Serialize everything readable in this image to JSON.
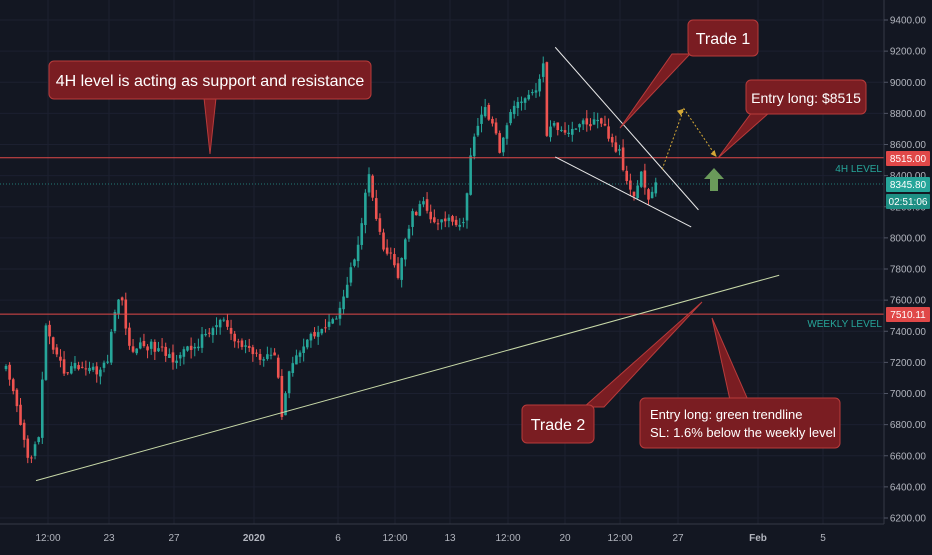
{
  "chart_data": {
    "type": "candlestick",
    "instrument_note": "BTC/USD 4H chart annotated with support/resistance levels and two trade ideas",
    "price_axis": {
      "ticks": [
        "9400.00",
        "9200.00",
        "9000.00",
        "8800.00",
        "8600.00",
        "8400.00",
        "8200.00",
        "8000.00",
        "7800.00",
        "7600.00",
        "7400.00",
        "7200.00",
        "7000.00",
        "6800.00",
        "6600.00",
        "6400.00",
        "6200.00"
      ],
      "range": [
        6150,
        9480
      ]
    },
    "time_axis": {
      "ticks": [
        "12:00",
        "23",
        "27",
        "2020",
        "6",
        "12:00",
        "13",
        "12:00",
        "20",
        "12:00",
        "27",
        "Feb",
        "5"
      ],
      "bold_ticks": [
        "2020",
        "Feb"
      ]
    },
    "levels": [
      {
        "id": "4h",
        "price": 8515,
        "label": "4H LEVEL",
        "tag": "8515.00",
        "color": "#e04848",
        "label_color": "#26a69a"
      },
      {
        "id": "weekly",
        "price": 7510.11,
        "label": "WEEKLY LEVEL",
        "tag": "7510.11",
        "color": "#e04848",
        "label_color": "#26a69a"
      }
    ],
    "current_price": {
      "tag": "8345.80",
      "countdown": "02:51:06",
      "price": 8345.8,
      "color": "#26a69a"
    },
    "trendline": {
      "from": {
        "bar": 0,
        "price": 6440
      },
      "to": {
        "bar": 213,
        "price": 7760
      },
      "color": "#c8d9a8"
    },
    "wedge": {
      "upper": {
        "from": {
          "bar": 148,
          "price": 9225
        },
        "to": {
          "bar": 188,
          "price": 8180
        }
      },
      "lower": {
        "from": {
          "bar": 148,
          "price": 8520
        },
        "to": {
          "bar": 186,
          "price": 8070
        }
      },
      "color": "#e8e8e8"
    },
    "projection": {
      "points": [
        {
          "bar": 178,
          "price": 8440
        },
        {
          "bar": 184,
          "price": 8830
        },
        {
          "bar": 193,
          "price": 8520
        }
      ],
      "color": "#d4a836"
    },
    "green_arrow_color": "#6a9a5a",
    "candle_colors": {
      "up": "#26a69a",
      "down": "#ef5350"
    },
    "anchors": [
      {
        "bar": 0,
        "price": 7150
      },
      {
        "bar": 3,
        "price": 6900
      },
      {
        "bar": 6,
        "price": 6580
      },
      {
        "bar": 9,
        "price": 6700
      },
      {
        "bar": 11,
        "price": 7450
      },
      {
        "bar": 13,
        "price": 7250
      },
      {
        "bar": 16,
        "price": 7150
      },
      {
        "bar": 20,
        "price": 7180
      },
      {
        "bar": 26,
        "price": 7150
      },
      {
        "bar": 28,
        "price": 7210
      },
      {
        "bar": 30,
        "price": 7550
      },
      {
        "bar": 32,
        "price": 7600
      },
      {
        "bar": 34,
        "price": 7280
      },
      {
        "bar": 38,
        "price": 7320
      },
      {
        "bar": 42,
        "price": 7280
      },
      {
        "bar": 46,
        "price": 7230
      },
      {
        "bar": 52,
        "price": 7300
      },
      {
        "bar": 56,
        "price": 7400
      },
      {
        "bar": 60,
        "price": 7470
      },
      {
        "bar": 62,
        "price": 7350
      },
      {
        "bar": 66,
        "price": 7300
      },
      {
        "bar": 70,
        "price": 7250
      },
      {
        "bar": 74,
        "price": 7260
      },
      {
        "bar": 76,
        "price": 6880
      },
      {
        "bar": 78,
        "price": 7150
      },
      {
        "bar": 82,
        "price": 7330
      },
      {
        "bar": 86,
        "price": 7400
      },
      {
        "bar": 90,
        "price": 7450
      },
      {
        "bar": 94,
        "price": 7700
      },
      {
        "bar": 97,
        "price": 7980
      },
      {
        "bar": 100,
        "price": 8410
      },
      {
        "bar": 102,
        "price": 8100
      },
      {
        "bar": 104,
        "price": 7920
      },
      {
        "bar": 106,
        "price": 7880
      },
      {
        "bar": 108,
        "price": 7760
      },
      {
        "bar": 110,
        "price": 7960
      },
      {
        "bar": 112,
        "price": 8150
      },
      {
        "bar": 115,
        "price": 8220
      },
      {
        "bar": 118,
        "price": 8080
      },
      {
        "bar": 122,
        "price": 8120
      },
      {
        "bar": 126,
        "price": 8100
      },
      {
        "bar": 128,
        "price": 8520
      },
      {
        "bar": 130,
        "price": 8750
      },
      {
        "bar": 132,
        "price": 8850
      },
      {
        "bar": 134,
        "price": 8710
      },
      {
        "bar": 136,
        "price": 8580
      },
      {
        "bar": 139,
        "price": 8780
      },
      {
        "bar": 141,
        "price": 8900
      },
      {
        "bar": 143,
        "price": 8880
      },
      {
        "bar": 145,
        "price": 8930
      },
      {
        "bar": 147,
        "price": 9000
      },
      {
        "bar": 148,
        "price": 9140
      },
      {
        "bar": 149,
        "price": 8650
      },
      {
        "bar": 151,
        "price": 8730
      },
      {
        "bar": 155,
        "price": 8690
      },
      {
        "bar": 158,
        "price": 8730
      },
      {
        "bar": 162,
        "price": 8740
      },
      {
        "bar": 165,
        "price": 8700
      },
      {
        "bar": 167,
        "price": 8600
      },
      {
        "bar": 169,
        "price": 8540
      },
      {
        "bar": 171,
        "price": 8360
      },
      {
        "bar": 173,
        "price": 8300
      },
      {
        "bar": 175,
        "price": 8420
      },
      {
        "bar": 177,
        "price": 8250
      },
      {
        "bar": 179,
        "price": 8350
      }
    ]
  },
  "annotations": {
    "callout_top_left": "4H level is acting as support and resistance",
    "trade1": "Trade 1",
    "trade2": "Trade 2",
    "entry_long_1": "Entry long: $8515",
    "entry_long_2_line1": "Entry long: green trendline",
    "entry_long_2_line2": "SL: 1.6% below the weekly level"
  }
}
